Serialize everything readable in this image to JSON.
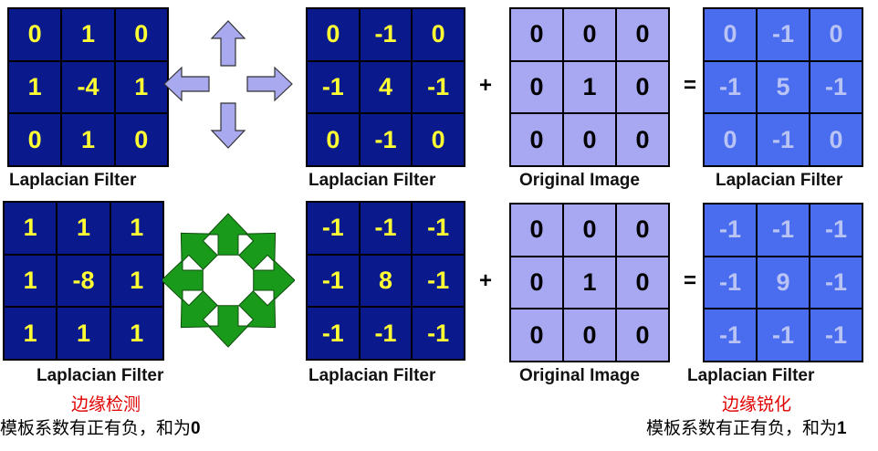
{
  "row1": {
    "filter_values": [
      "0",
      "1",
      "0",
      "1",
      "-4",
      "1",
      "0",
      "1",
      "0"
    ],
    "rotated_values": [
      "0",
      "-1",
      "0",
      "-1",
      "4",
      "-1",
      "0",
      "-1",
      "0"
    ],
    "original_values": [
      "0",
      "0",
      "0",
      "0",
      "1",
      "0",
      "0",
      "0",
      "0"
    ],
    "result_values": [
      "0",
      "-1",
      "0",
      "-1",
      "5",
      "-1",
      "0",
      "-1",
      "0"
    ],
    "label1": "Laplacian Filter",
    "label2": "Laplacian Filter",
    "label3": "Original Image",
    "label4": "Laplacian Filter",
    "plus": "+",
    "equals": "="
  },
  "row2": {
    "filter_values": [
      "1",
      "1",
      "1",
      "1",
      "-8",
      "1",
      "1",
      "1",
      "1"
    ],
    "rotated_values": [
      "-1",
      "-1",
      "-1",
      "-1",
      "8",
      "-1",
      "-1",
      "-1",
      "-1"
    ],
    "original_values": [
      "0",
      "0",
      "0",
      "0",
      "1",
      "0",
      "0",
      "0",
      "0"
    ],
    "result_values": [
      "-1",
      "-1",
      "-1",
      "-1",
      "9",
      "-1",
      "-1",
      "-1",
      "-1"
    ],
    "label1": "Laplacian Filter",
    "label2": "Laplacian Filter",
    "label3": "Original Image",
    "label4": "Laplacian Filter",
    "plus": "+",
    "equals": "="
  },
  "captions": {
    "edge_detection": "边缘检测",
    "edge_sharpening": "边缘锐化",
    "note_left_text": "模板系数有正有负，和为",
    "note_left_value": "0",
    "note_right_text": "模板系数有正有负，和为",
    "note_right_value": "1"
  },
  "colors": {
    "dark_grid": "#0a1a8c",
    "dark_text": "#ffff33",
    "original_grid": "#a7a7f2",
    "result_grid": "#4a6df0",
    "result_text": "#b9c4f4",
    "four_arrow_fill": "#a9a9f0",
    "eight_arrow_fill": "#1a9a1a",
    "caption_red": "#e00000"
  },
  "icons": {
    "four_direction": "four-direction-arrows-icon",
    "eight_direction": "eight-direction-arrows-icon"
  }
}
